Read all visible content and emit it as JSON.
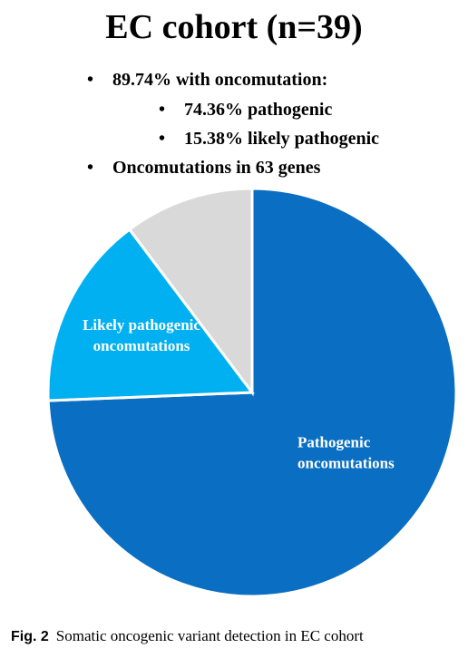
{
  "title": "EC cohort (n=39)",
  "bullets": [
    {
      "text": "89.74% with oncomutation:",
      "level": 1
    },
    {
      "text": "74.36% pathogenic",
      "level": 2
    },
    {
      "text": "15.38% likely pathogenic",
      "level": 2
    },
    {
      "text": "Oncomutations in 63 genes",
      "level": 1
    }
  ],
  "bullet_char": "•",
  "chart_data": {
    "type": "pie",
    "title": "",
    "slices": [
      {
        "label": "Pathogenic oncomutations",
        "label_lines": [
          "Pathogenic",
          "oncomutations"
        ],
        "value": 74.36,
        "color": "#0a6fc2",
        "label_color": "#ffffff"
      },
      {
        "label": "Likely pathogenic oncomutations",
        "label_lines": [
          "Likely pathogenic",
          "oncomutations"
        ],
        "value": 15.38,
        "color": "#00b0f0",
        "label_color": "#ffffff"
      },
      {
        "label": "",
        "label_lines": [],
        "value": 10.26,
        "color": "#d9d9d9",
        "label_color": "#ffffff"
      }
    ],
    "start_angle_deg": 0,
    "direction": "clockwise"
  },
  "caption": {
    "fig_label": "Fig. 2",
    "text": "Somatic oncogenic variant detection in EC cohort"
  }
}
